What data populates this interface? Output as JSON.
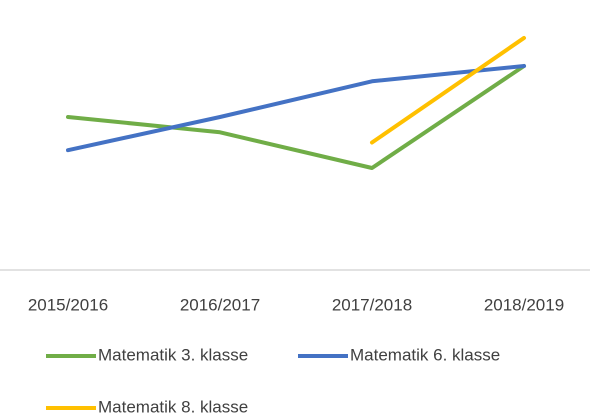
{
  "chart_data": {
    "type": "line",
    "categories": [
      "2015/2016",
      "2016/2017",
      "2017/2018",
      "2018/2019"
    ],
    "series": [
      {
        "name": "Matematik 3. klasse",
        "color": "#70ad47",
        "values": [
          60,
          54,
          40,
          80
        ]
      },
      {
        "name": "Matematik 6. klasse",
        "color": "#4472c4",
        "values": [
          47,
          60,
          74,
          80
        ]
      },
      {
        "name": "Matematik 8. klasse",
        "color": "#ffc000",
        "values": [
          null,
          null,
          50,
          91
        ]
      }
    ],
    "ylim": [
      0,
      100
    ],
    "grid": false
  }
}
